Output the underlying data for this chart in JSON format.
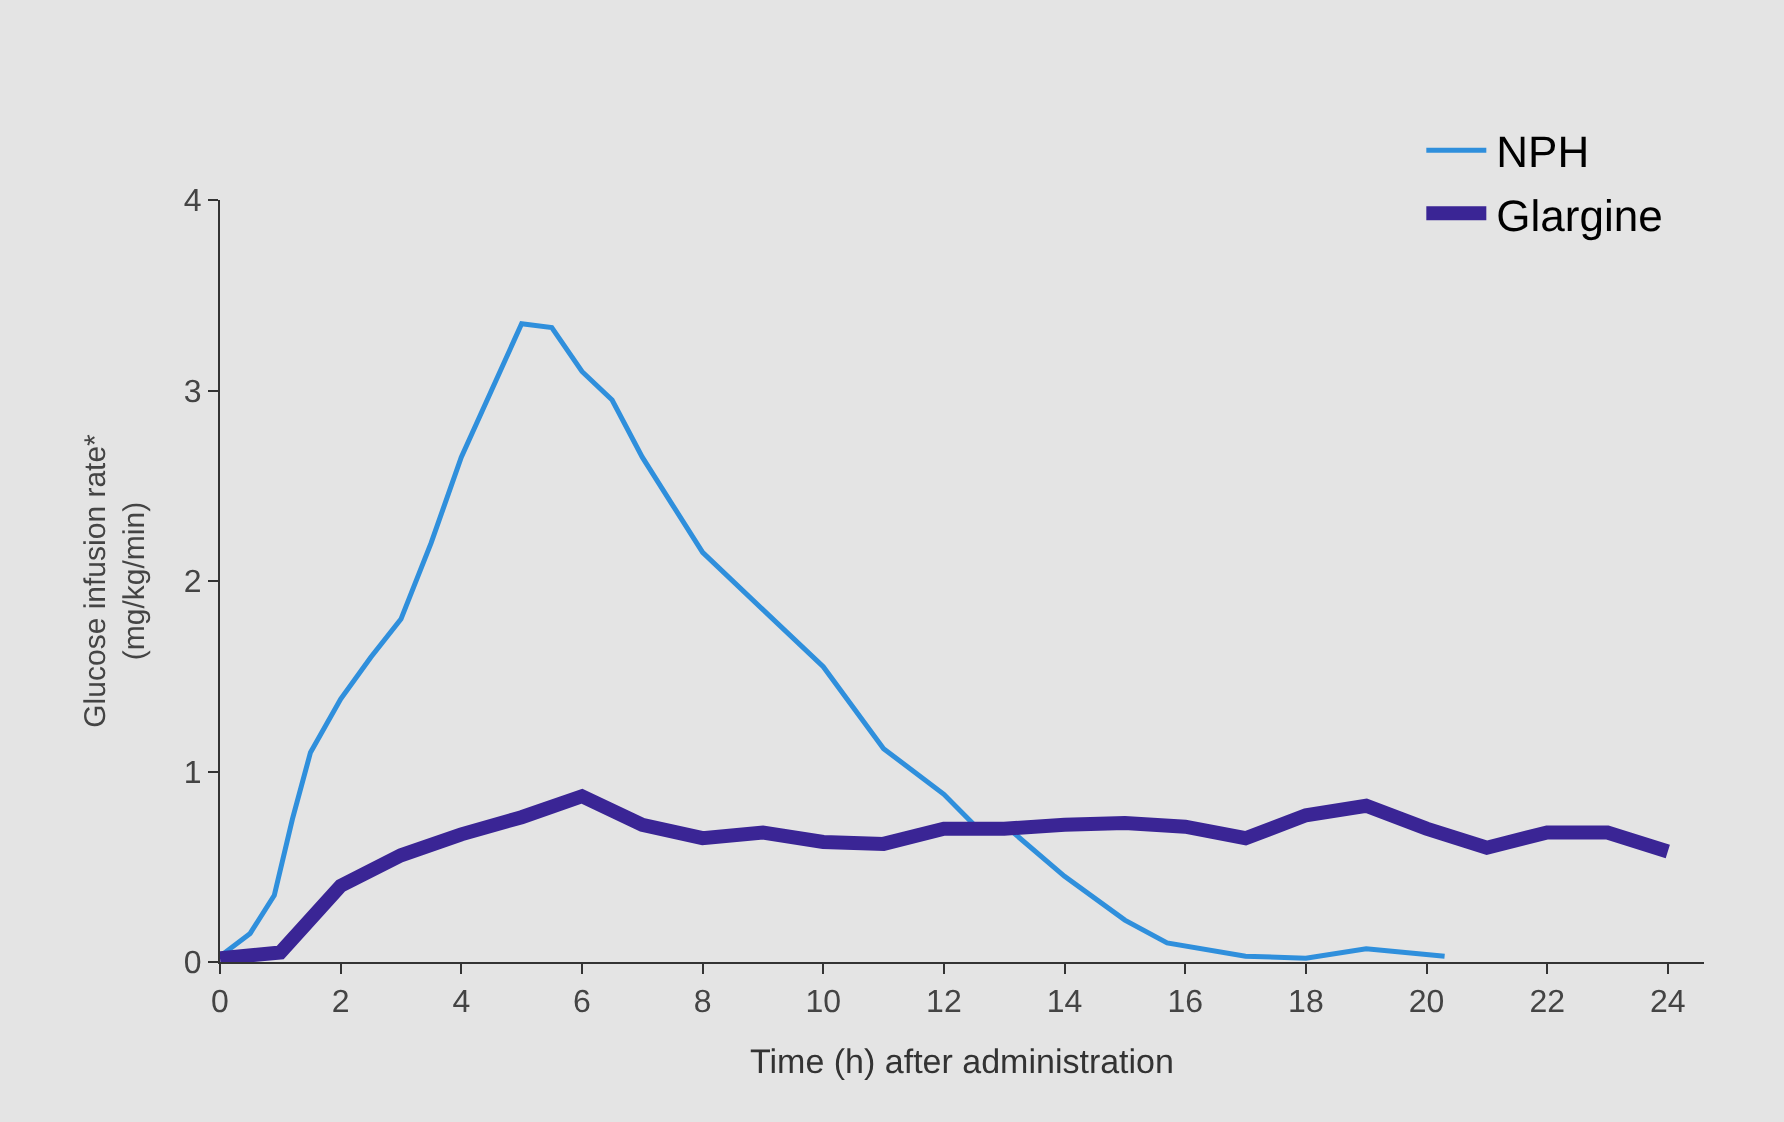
{
  "chart_data": {
    "type": "line",
    "xlabel": "Time (h) after administration",
    "ylabel": "Glucose infusion rate*\n(mg/kg/min)",
    "xlim": [
      0,
      24.6
    ],
    "xticks": [
      0,
      2,
      4,
      6,
      8,
      10,
      12,
      14,
      16,
      18,
      20,
      22,
      24
    ],
    "ylim": [
      0,
      4
    ],
    "yticks": [
      0,
      1,
      2,
      3,
      4
    ],
    "grid": false,
    "legend": "top right",
    "marker": "none",
    "line_style": "solid",
    "series": [
      {
        "name": "NPH",
        "color": "#2f8fdc",
        "x": [
          0,
          0.5,
          0.9,
          1.2,
          1.5,
          2,
          2.5,
          3,
          3.5,
          4,
          4.5,
          5,
          5.5,
          6,
          6.5,
          7,
          7.5,
          8,
          9,
          10,
          11,
          12,
          12.5,
          13,
          14,
          15,
          15.7,
          17,
          18,
          19,
          20.3
        ],
        "values": [
          0.03,
          0.15,
          0.35,
          0.75,
          1.1,
          1.38,
          1.6,
          1.8,
          2.2,
          2.65,
          3.0,
          3.35,
          3.33,
          3.1,
          2.95,
          2.65,
          2.4,
          2.15,
          1.85,
          1.55,
          1.12,
          0.88,
          0.72,
          0.72,
          0.45,
          0.22,
          0.1,
          0.03,
          0.02,
          0.07,
          0.03
        ]
      },
      {
        "name": "Glargine",
        "color": "#3a2595",
        "x": [
          0,
          1,
          2,
          3,
          4,
          5,
          6,
          7,
          8,
          9,
          10,
          11,
          12,
          13,
          14,
          15,
          16,
          17,
          18,
          19,
          20,
          21,
          22,
          23,
          24
        ],
        "values": [
          0.02,
          0.05,
          0.4,
          0.56,
          0.67,
          0.76,
          0.87,
          0.72,
          0.65,
          0.68,
          0.63,
          0.62,
          0.7,
          0.7,
          0.72,
          0.73,
          0.71,
          0.65,
          0.77,
          0.82,
          0.7,
          0.6,
          0.68,
          0.68,
          0.58
        ]
      }
    ]
  }
}
